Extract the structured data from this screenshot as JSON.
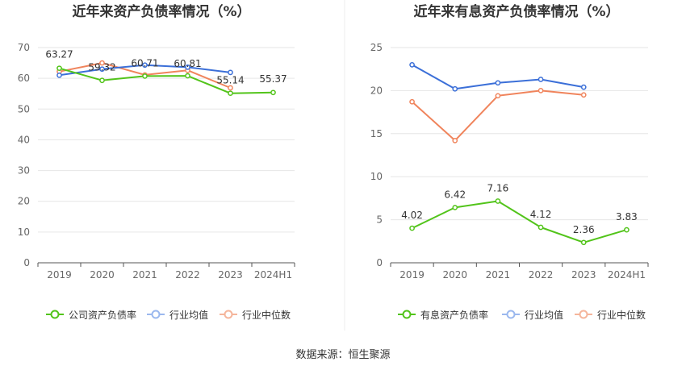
{
  "source_text": "数据来源：恒生聚源",
  "colors": {
    "company": "#52c41a",
    "industry_avg": "#3b6fd8",
    "industry_median": "#f0845c",
    "grid": "#e6e6e6",
    "axis": "#666666",
    "legend_avg_faded": "#9bb8ee",
    "legend_median_faded": "#f5b59b"
  },
  "chart_data": [
    {
      "type": "line",
      "title": "近年来资产负债率情况（%）",
      "categories": [
        "2019",
        "2020",
        "2021",
        "2022",
        "2023",
        "2024H1"
      ],
      "ylim": [
        0,
        70
      ],
      "yticks": [
        0,
        10,
        20,
        30,
        40,
        50,
        60,
        70
      ],
      "grid": true,
      "legend_position": "bottom",
      "series": [
        {
          "name": "公司资产负债率",
          "key": "company",
          "labeled": true,
          "values": [
            63.27,
            59.32,
            60.71,
            60.81,
            55.14,
            55.37
          ],
          "labels": [
            "63.27",
            "59.32",
            "60.71",
            "60.81",
            "55.14",
            "55.37"
          ]
        },
        {
          "name": "行业均值",
          "key": "industry_avg",
          "labeled": false,
          "values": [
            61.0,
            63.0,
            64.3,
            63.6,
            61.9,
            null
          ]
        },
        {
          "name": "行业中位数",
          "key": "industry_median",
          "labeled": false,
          "values": [
            62.2,
            65.0,
            61.1,
            62.6,
            56.9,
            null
          ]
        }
      ]
    },
    {
      "type": "line",
      "title": "近年来有息资产负债率情况（%）",
      "categories": [
        "2019",
        "2020",
        "2021",
        "2022",
        "2023",
        "2024H1"
      ],
      "ylim": [
        0,
        25
      ],
      "yticks": [
        0,
        5,
        10,
        15,
        20,
        25
      ],
      "grid": true,
      "legend_position": "bottom",
      "series": [
        {
          "name": "有息资产负债率",
          "key": "company",
          "labeled": true,
          "values": [
            4.02,
            6.42,
            7.16,
            4.12,
            2.36,
            3.83
          ],
          "labels": [
            "4.02",
            "6.42",
            "7.16",
            "4.12",
            "2.36",
            "3.83"
          ]
        },
        {
          "name": "行业均值",
          "key": "industry_avg",
          "labeled": false,
          "values": [
            23.0,
            20.2,
            20.9,
            21.3,
            20.4,
            null
          ]
        },
        {
          "name": "行业中位数",
          "key": "industry_median",
          "labeled": false,
          "values": [
            18.7,
            14.2,
            19.4,
            20.0,
            19.5,
            null
          ]
        }
      ]
    }
  ]
}
